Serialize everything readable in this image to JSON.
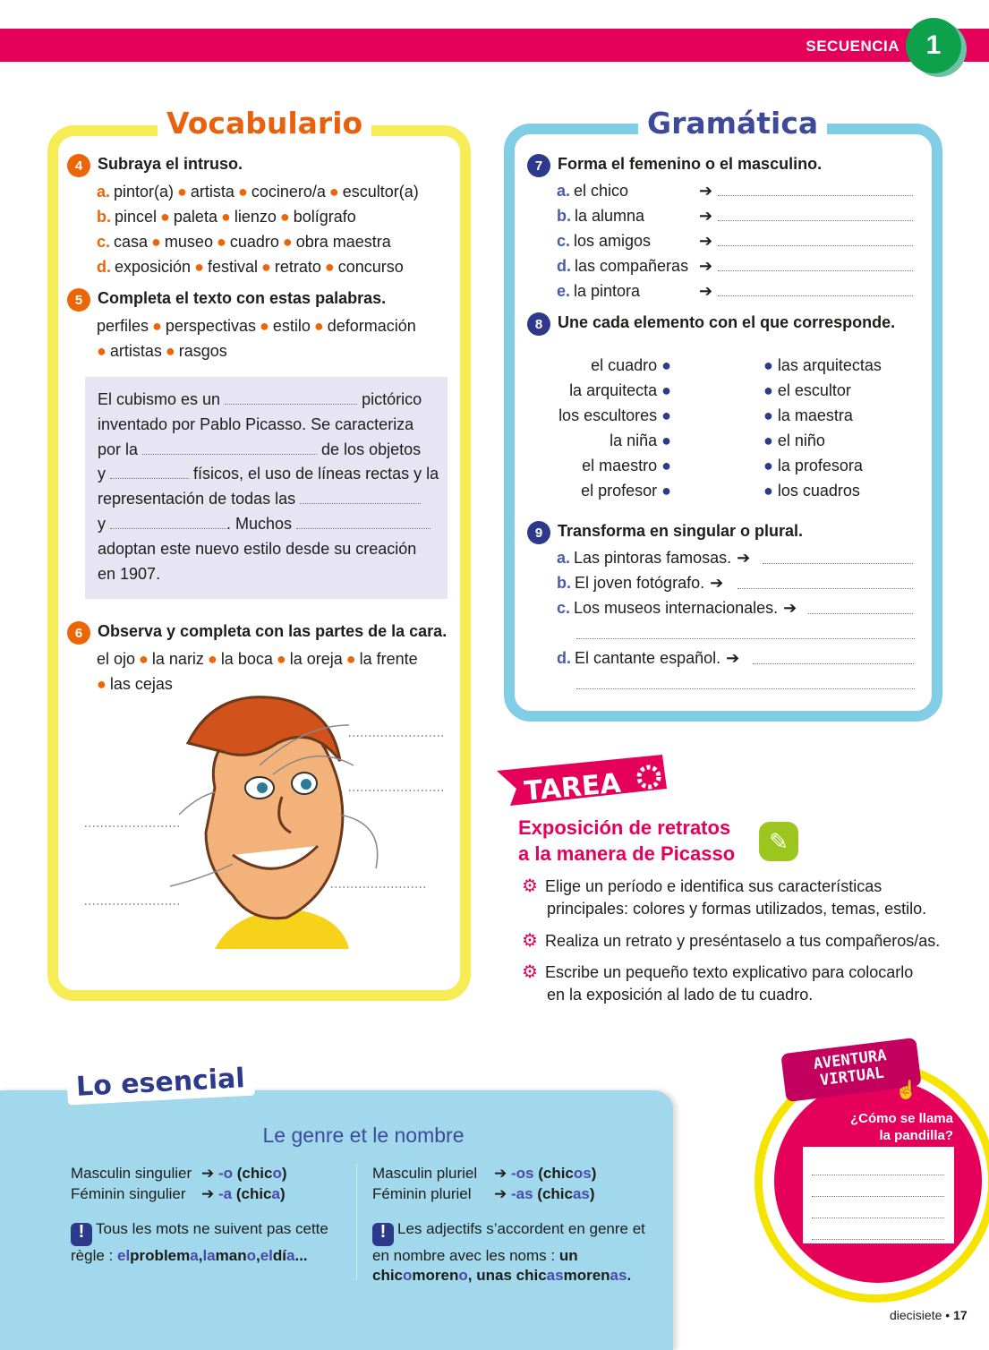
{
  "header": {
    "sequence_label": "SECUENCIA",
    "sequence_number": "1"
  },
  "vocabulario": {
    "title": "Vocabulario",
    "ex4": {
      "num": "4",
      "instruction": "Subraya el intruso.",
      "items": [
        {
          "letter": "a.",
          "words": [
            "pintor(a)",
            "artista",
            "cocinero/a",
            "escultor(a)"
          ]
        },
        {
          "letter": "b.",
          "words": [
            "pincel",
            "paleta",
            "lienzo",
            "bolígrafo"
          ]
        },
        {
          "letter": "c.",
          "words": [
            "casa",
            "museo",
            "cuadro",
            "obra maestra"
          ]
        },
        {
          "letter": "d.",
          "words": [
            "exposición",
            "festival",
            "retrato",
            "concurso"
          ]
        }
      ]
    },
    "ex5": {
      "num": "5",
      "instruction": "Completa el texto con estas palabras.",
      "words_line1": [
        "perfiles",
        "perspectivas",
        "estilo",
        "deformación"
      ],
      "words_line2": [
        "artistas",
        "rasgos"
      ],
      "text": [
        [
          [
            "t",
            "El cubismo es un "
          ],
          [
            "b",
            148
          ],
          [
            "t",
            " pictórico"
          ]
        ],
        [
          [
            "t",
            "inventado por Pablo Picasso. Se caracteriza"
          ]
        ],
        [
          [
            "t",
            "por la "
          ],
          [
            "b",
            195
          ],
          [
            "t",
            " de los objetos"
          ]
        ],
        [
          [
            "t",
            "y "
          ],
          [
            "b",
            88
          ],
          [
            "t",
            " físicos, el uso de líneas rectas y la"
          ]
        ],
        [
          [
            "t",
            "representación de todas las "
          ],
          [
            "b",
            135
          ]
        ],
        [
          [
            "t",
            "y "
          ],
          [
            "b",
            130
          ],
          [
            "t",
            ". Muchos "
          ],
          [
            "b",
            150
          ]
        ],
        [
          [
            "t",
            "adoptan este nuevo estilo desde su creación"
          ]
        ],
        [
          [
            "t",
            "en 1907."
          ]
        ]
      ]
    },
    "ex6": {
      "num": "6",
      "instruction": "Observa y completa con las partes de la cara.",
      "words_line1": [
        "el ojo",
        "la nariz",
        "la boca",
        "la oreja",
        "la frente"
      ],
      "words_line2": [
        "las cejas"
      ]
    }
  },
  "gramatica": {
    "title": "Gramática",
    "ex7": {
      "num": "7",
      "instruction": "Forma el femenino o el masculino.",
      "items": [
        {
          "letter": "a.",
          "text": "el chico"
        },
        {
          "letter": "b.",
          "text": "la alumna"
        },
        {
          "letter": "c.",
          "text": "los amigos"
        },
        {
          "letter": "d.",
          "text": "las compañeras"
        },
        {
          "letter": "e.",
          "text": "la pintora"
        }
      ]
    },
    "ex8": {
      "num": "8",
      "instruction": "Une cada elemento con el que corresponde.",
      "left": [
        "el cuadro",
        "la arquitecta",
        "los escultores",
        "la niña",
        "el maestro",
        "el profesor"
      ],
      "right": [
        "las arquitectas",
        "el escultor",
        "la maestra",
        "el niño",
        "la profesora",
        "los cuadros"
      ]
    },
    "ex9": {
      "num": "9",
      "instruction": "Transforma en singular o plural.",
      "items": [
        {
          "letter": "a.",
          "text": "Las pintoras famosas."
        },
        {
          "letter": "b.",
          "text": "El joven fotógrafo."
        },
        {
          "letter": "c.",
          "text": "Los museos internacionales."
        },
        {
          "letter": "d.",
          "text": "El cantante español."
        }
      ]
    }
  },
  "tarea": {
    "banner": "TAREA",
    "title_line1": "Exposición de retratos",
    "title_line2": "a la manera de Picasso",
    "items": [
      [
        "Elige un período e identifica sus características",
        "principales: colores y formas utilizados, temas, estilo."
      ],
      [
        "Realiza un retrato y preséntaselo a tus compañeros/as."
      ],
      [
        "Escribe un pequeño texto explicativo para colocarlo",
        "en la exposición al lado de tu cuadro."
      ]
    ]
  },
  "esencial": {
    "tab": "Lo esencial",
    "title": "Le genre et le nombre",
    "ms_label": "Masculin singulier",
    "ms_end": "-o",
    "ms_ex_a": "(chic",
    "ms_ex_b": "o",
    "fs_label": "Féminin singulier",
    "fs_end": "-a",
    "fs_ex_a": "(chic",
    "fs_ex_b": "a",
    "mp_label": "Masculin pluriel",
    "mp_end": "-os",
    "mp_ex_a": "(chic",
    "mp_ex_b": "os",
    "fp_label": "Féminin pluriel",
    "fp_end": "-as",
    "fp_ex_a": "(chic",
    "fp_ex_b": "as",
    "note1": "Tous les mots ne suivent pas cette règle :",
    "note1_ex": [
      "el",
      "problem",
      "a",
      ",",
      "la",
      "man",
      "o",
      ",",
      "el",
      "dí",
      "a",
      "..."
    ],
    "note2": "Les adjectifs s’accordent en genre et en nombre avec les noms :",
    "note2_ex": [
      "un chic",
      "o",
      "moren",
      "o",
      ", unas chic",
      "as",
      "moren",
      "as",
      "."
    ]
  },
  "aventura": {
    "badge_line1": "AVENTURA",
    "badge_line2": "VIRTUAL",
    "question_line1": "¿Cómo se llama",
    "question_line2": "la pandilla?"
  },
  "footer": {
    "page_word": "diecisiete",
    "page_number": "17"
  },
  "colors": {
    "pink": "#e5005a",
    "orange": "#ec6608",
    "yellow": "#f6ec55",
    "blue": "#82cde6",
    "navy": "#2d3a8c",
    "green": "#0ea14b"
  }
}
